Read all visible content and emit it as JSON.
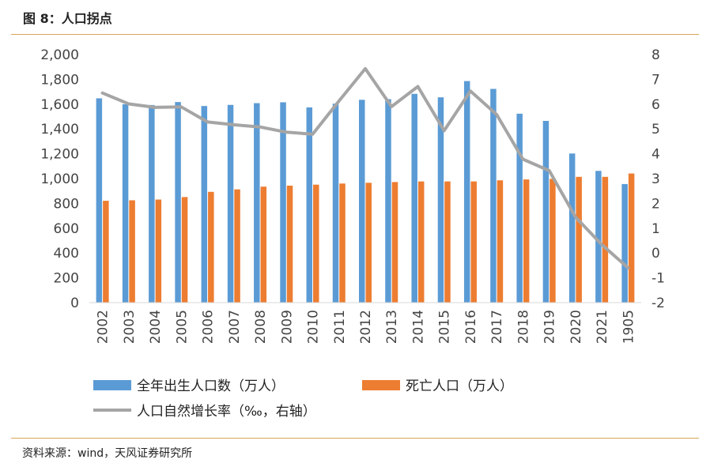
{
  "header": {
    "title": "图 8：人口拐点"
  },
  "footer": {
    "source": "资料来源：wind，天风证券研究所"
  },
  "colors": {
    "births": "#5b9bd5",
    "deaths": "#ed7d31",
    "rate": "#a5a5a5",
    "rule": "#d9a55a"
  },
  "chart_data": {
    "type": "bar",
    "title": "",
    "categories": [
      "2002",
      "2003",
      "2004",
      "2005",
      "2006",
      "2007",
      "2008",
      "2009",
      "2010",
      "2011",
      "2012",
      "2013",
      "2014",
      "2015",
      "2016",
      "2017",
      "2018",
      "2019",
      "2020",
      "2021",
      "1905"
    ],
    "series": [
      {
        "name": "全年出生人口数（万人）",
        "type": "bar",
        "axis": "left",
        "values": [
          1647,
          1599,
          1593,
          1617,
          1585,
          1594,
          1608,
          1615,
          1574,
          1604,
          1635,
          1640,
          1683,
          1655,
          1786,
          1723,
          1523,
          1465,
          1202,
          1062,
          956
        ]
      },
      {
        "name": "死亡人口（万人）",
        "type": "bar",
        "axis": "left",
        "values": [
          821,
          825,
          831,
          851,
          893,
          913,
          935,
          943,
          951,
          960,
          966,
          972,
          977,
          977,
          977,
          986,
          993,
          998,
          1014,
          1014,
          1041
        ]
      },
      {
        "name": "人口自然增长率（‰，右轴）",
        "type": "line",
        "axis": "right",
        "values": [
          6.45,
          6.01,
          5.87,
          5.89,
          5.28,
          5.17,
          5.08,
          4.87,
          4.79,
          6.13,
          7.43,
          5.9,
          6.71,
          4.93,
          6.53,
          5.58,
          3.78,
          3.32,
          1.45,
          0.34,
          -0.6
        ]
      }
    ],
    "yleft": {
      "lim": [
        0,
        2000
      ],
      "ticks": [
        "0",
        "200",
        "400",
        "600",
        "800",
        "1,000",
        "1,200",
        "1,400",
        "1,600",
        "1,800",
        "2,000"
      ]
    },
    "yright": {
      "lim": [
        -2,
        8
      ],
      "ticks": [
        "-2",
        "-1",
        "0",
        "1",
        "2",
        "3",
        "4",
        "5",
        "6",
        "7",
        "8"
      ]
    },
    "grid": false,
    "legend": "bottom"
  }
}
